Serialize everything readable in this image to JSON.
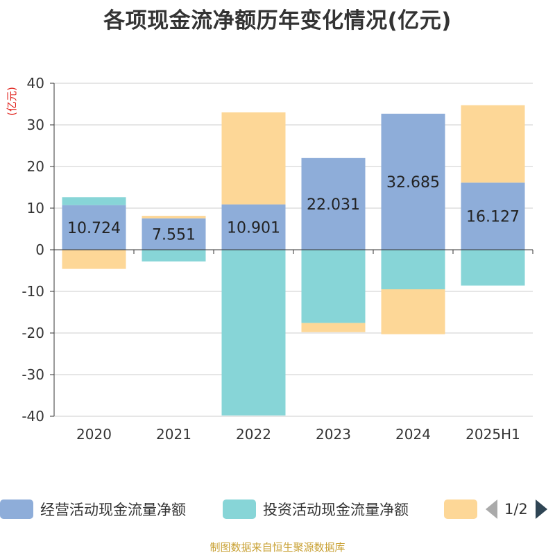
{
  "title": "各项现金流净额历年变化情况(亿元)",
  "source_note": "制图数据来自恒生聚源数据库",
  "legend": {
    "items": [
      {
        "label": "经营活动现金流量净额",
        "color": "#8eadd9"
      },
      {
        "label": "投资活动现金流量净额",
        "color": "#87d5d7"
      },
      {
        "label": "",
        "color": "#fdd797"
      }
    ],
    "page": "1/2"
  },
  "chart_data": {
    "type": "bar",
    "stacked": true,
    "ylabel": "(亿元)",
    "ylim": [
      -40,
      40
    ],
    "yticks": [
      -40,
      -30,
      -20,
      -10,
      0,
      10,
      20,
      30,
      40
    ],
    "grid": true,
    "legend_position": "bottom",
    "categories": [
      "2020",
      "2021",
      "2022",
      "2023",
      "2024",
      "2025H1"
    ],
    "series": [
      {
        "name": "经营活动现金流量净额",
        "color": "#8eadd9",
        "values": [
          10.724,
          7.551,
          10.901,
          22.031,
          32.685,
          16.127
        ],
        "labels": [
          "10.724",
          "7.551",
          "10.901",
          "22.031",
          "32.685",
          "16.127"
        ]
      },
      {
        "name": "投资活动现金流量净额",
        "color": "#87d5d7",
        "values": [
          1.9,
          -2.8,
          -39.8,
          -17.6,
          -9.5,
          -8.6
        ]
      },
      {
        "color": "#fdd797",
        "values": [
          -4.6,
          0.6,
          22.1,
          -2.2,
          -10.8,
          18.6
        ]
      }
    ]
  }
}
